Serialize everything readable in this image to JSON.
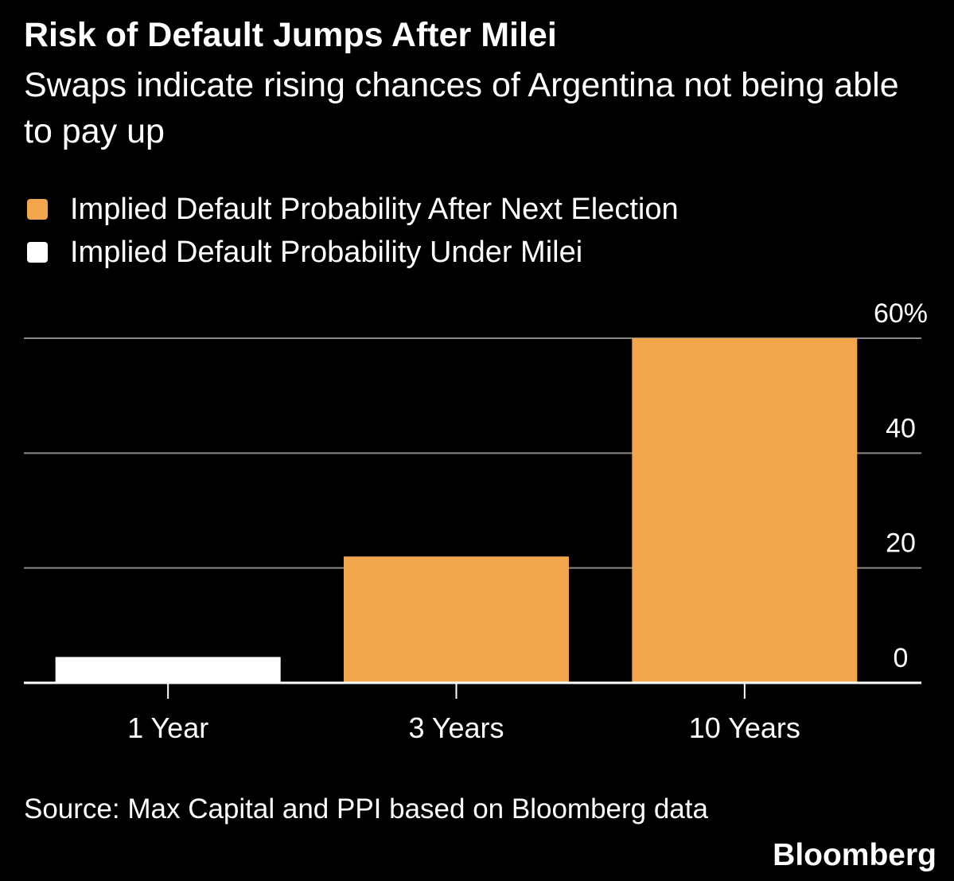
{
  "title": "Risk of Default Jumps After Milei",
  "subtitle": "Swaps indicate rising chances of Argentina not being able to pay up",
  "legend": [
    {
      "label": "Implied Default Probability After Next Election",
      "color": "#f2a54a"
    },
    {
      "label": "Implied Default Probability Under Milei",
      "color": "#ffffff"
    }
  ],
  "source": "Source: Max Capital and PPI based on Bloomberg data",
  "brand": "Bloomberg",
  "chart_data": {
    "type": "bar",
    "categories": [
      "1 Year",
      "3 Years",
      "10 Years"
    ],
    "bars": [
      {
        "category": "1 Year",
        "value": 4.5,
        "series": "Implied Default Probability Under Milei",
        "color": "#ffffff"
      },
      {
        "category": "3 Years",
        "value": 22,
        "series": "Implied Default Probability After Next Election",
        "color": "#f2a54a"
      },
      {
        "category": "10 Years",
        "value": 60,
        "series": "Implied Default Probability After Next Election",
        "color": "#f2a54a"
      }
    ],
    "y_ticks": [
      {
        "value": 0,
        "label": "0"
      },
      {
        "value": 20,
        "label": "20"
      },
      {
        "value": 40,
        "label": "40"
      },
      {
        "value": 60,
        "label": "60%"
      }
    ],
    "ylim": [
      0,
      60
    ],
    "y_axis_side": "right",
    "grid": true,
    "background": "#000000",
    "gridline_color": "#8a8a8a"
  }
}
